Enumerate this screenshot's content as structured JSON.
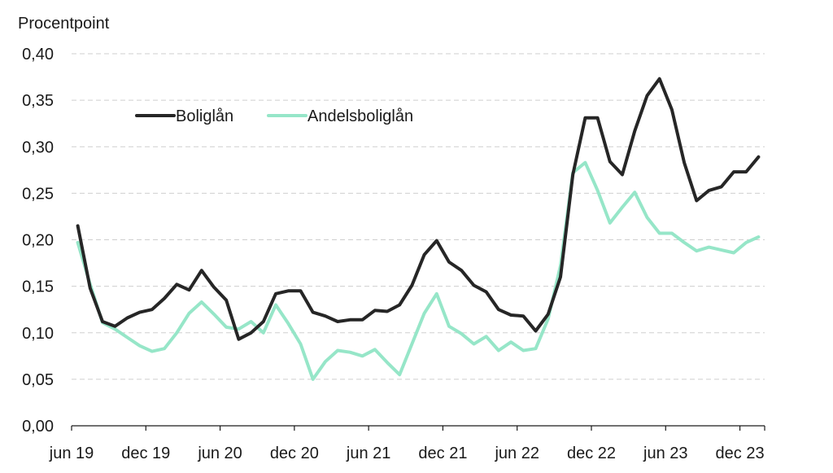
{
  "chart_data": {
    "type": "line",
    "ylabel": "Procentpoint",
    "ylim": [
      0,
      0.4
    ],
    "yticks": [
      0,
      0.05,
      0.1,
      0.15,
      0.2,
      0.25,
      0.3,
      0.35,
      0.4
    ],
    "ytick_labels": [
      "0,00",
      "0,05",
      "0,10",
      "0,15",
      "0,20",
      "0,25",
      "0,30",
      "0,35",
      "0,40"
    ],
    "grid": true,
    "legend_position": "upper-left",
    "x_categories": [
      "jun 19",
      "jul 19",
      "aug 19",
      "sep 19",
      "okt 19",
      "nov 19",
      "dec 19",
      "jan 20",
      "feb 20",
      "mar 20",
      "apr 20",
      "maj 20",
      "jun 20",
      "jul 20",
      "aug 20",
      "sep 20",
      "okt 20",
      "nov 20",
      "dec 20",
      "jan 21",
      "feb 21",
      "mar 21",
      "apr 21",
      "maj 21",
      "jun 21",
      "jul 21",
      "aug 21",
      "sep 21",
      "okt 21",
      "nov 21",
      "dec 21",
      "jan 22",
      "feb 22",
      "mar 22",
      "apr 22",
      "maj 22",
      "jun 22",
      "jul 22",
      "aug 22",
      "sep 22",
      "okt 22",
      "nov 22",
      "dec 22",
      "jan 23",
      "feb 23",
      "mar 23",
      "apr 23",
      "maj 23",
      "jun 23",
      "jul 23",
      "aug 23",
      "sep 23",
      "okt 23",
      "nov 23",
      "dec 23",
      "jan 24"
    ],
    "xtick_labels": [
      {
        "label": "jun 19",
        "index": 0
      },
      {
        "label": "dec 19",
        "index": 6
      },
      {
        "label": "jun 20",
        "index": 12
      },
      {
        "label": "dec 20",
        "index": 18
      },
      {
        "label": "jun 21",
        "index": 24
      },
      {
        "label": "dec 21",
        "index": 30
      },
      {
        "label": "jun 22",
        "index": 36
      },
      {
        "label": "dec 22",
        "index": 42
      },
      {
        "label": "jun 23",
        "index": 48
      },
      {
        "label": "dec 23",
        "index": 54
      }
    ],
    "series": [
      {
        "name": "Boliglån",
        "color": "#262626",
        "values": [
          0.215,
          0.148,
          0.112,
          0.107,
          0.116,
          0.122,
          0.125,
          0.137,
          0.152,
          0.146,
          0.167,
          0.149,
          0.135,
          0.093,
          0.1,
          0.112,
          0.142,
          0.145,
          0.145,
          0.122,
          0.118,
          0.112,
          0.114,
          0.114,
          0.124,
          0.123,
          0.13,
          0.151,
          0.184,
          0.199,
          0.176,
          0.167,
          0.151,
          0.144,
          0.125,
          0.119,
          0.118,
          0.102,
          0.12,
          0.16,
          0.27,
          0.331,
          0.331,
          0.284,
          0.27,
          0.317,
          0.355,
          0.373,
          0.34,
          0.283,
          0.242,
          0.253,
          0.257,
          0.273,
          0.273,
          0.289
        ]
      },
      {
        "name": "Andelsboliglån",
        "color": "#96e6c8",
        "values": [
          0.197,
          0.152,
          0.111,
          0.104,
          0.095,
          0.086,
          0.08,
          0.083,
          0.1,
          0.121,
          0.133,
          0.12,
          0.106,
          0.104,
          0.112,
          0.1,
          0.13,
          0.11,
          0.088,
          0.05,
          0.069,
          0.081,
          0.079,
          0.075,
          0.082,
          0.068,
          0.055,
          0.088,
          0.121,
          0.142,
          0.107,
          0.099,
          0.088,
          0.096,
          0.081,
          0.09,
          0.081,
          0.083,
          0.115,
          0.172,
          0.272,
          0.283,
          0.253,
          0.218,
          0.235,
          0.251,
          0.224,
          0.207,
          0.207,
          0.197,
          0.188,
          0.192,
          0.189,
          0.186,
          0.197,
          0.203
        ]
      }
    ]
  }
}
